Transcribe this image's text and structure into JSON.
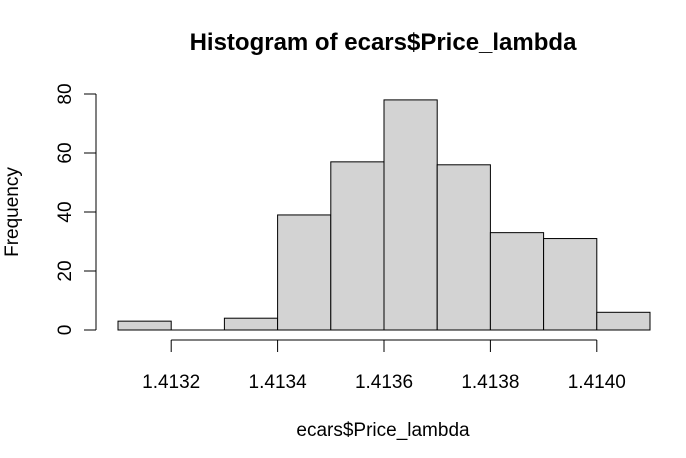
{
  "chart_data": {
    "type": "histogram",
    "title": "Histogram of ecars$Price_lambda",
    "xlabel": "ecars$Price_lambda",
    "ylabel": "Frequency",
    "bins": [
      {
        "from": 1.4131,
        "to": 1.4132,
        "count": 3
      },
      {
        "from": 1.4132,
        "to": 1.4133,
        "count": 0
      },
      {
        "from": 1.4133,
        "to": 1.4134,
        "count": 4
      },
      {
        "from": 1.4134,
        "to": 1.4135,
        "count": 39
      },
      {
        "from": 1.4135,
        "to": 1.4136,
        "count": 57
      },
      {
        "from": 1.4136,
        "to": 1.4137,
        "count": 78
      },
      {
        "from": 1.4137,
        "to": 1.4138,
        "count": 56
      },
      {
        "from": 1.4138,
        "to": 1.4139,
        "count": 33
      },
      {
        "from": 1.4139,
        "to": 1.414,
        "count": 31
      },
      {
        "from": 1.414,
        "to": 1.4141,
        "count": 6
      }
    ],
    "xticks": [
      1.4132,
      1.4134,
      1.4136,
      1.4138,
      1.414
    ],
    "xtick_labels": [
      "1.4132",
      "1.4134",
      "1.4136",
      "1.4138",
      "1.4140"
    ],
    "yticks": [
      0,
      20,
      40,
      60,
      80
    ],
    "ytick_labels": [
      "0",
      "20",
      "40",
      "60",
      "80"
    ],
    "xlim": [
      1.4131,
      1.4141
    ],
    "ylim": [
      0,
      80
    ],
    "grid": false,
    "legend": "none",
    "bar_color": "#d3d3d3",
    "edge_color": "#000000"
  }
}
